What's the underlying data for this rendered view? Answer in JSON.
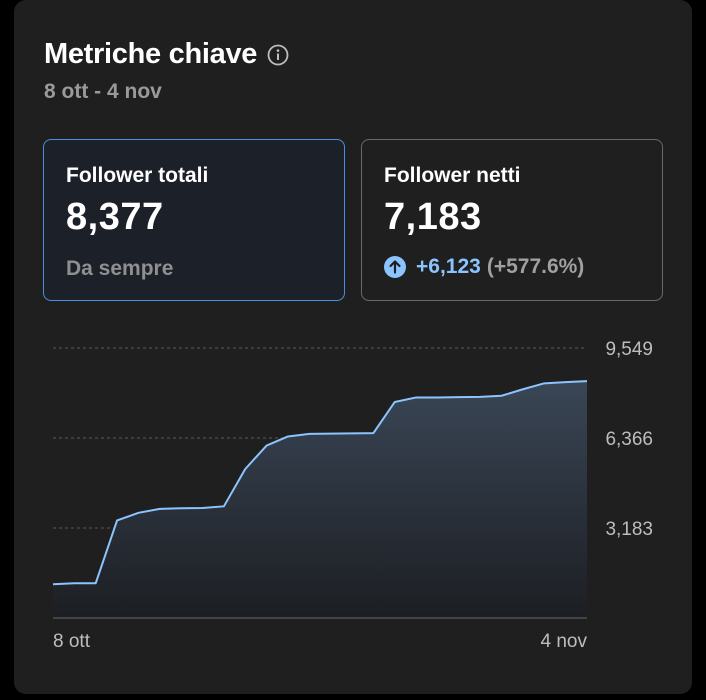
{
  "header": {
    "title": "Metriche chiave",
    "info_icon": "info-icon",
    "date_range": "8 ott - 4 nov"
  },
  "metrics": [
    {
      "label": "Follower totali",
      "value": "8,377",
      "sub": "Da sempre"
    },
    {
      "label": "Follower netti",
      "value": "7,183",
      "delta_icon": "arrow-up-circle-icon",
      "delta_value": "+6,123",
      "delta_pct": "(+577.6%)"
    }
  ],
  "colors": {
    "card_bg": "#1f1f1f",
    "accent_blue": "#4a8fdb",
    "line_color": "#8cc4ff",
    "delta_positive": "#8cc4ff"
  },
  "chart_data": {
    "type": "area",
    "x_start_label": "8 ott",
    "x_end_label": "4 nov",
    "y_ticks": [
      3183,
      6366,
      9549
    ],
    "y_tick_labels": [
      "3,183",
      "6,366",
      "9,549"
    ],
    "ylim": [
      0,
      9549
    ],
    "grid": true,
    "values": [
      1194,
      1230,
      1230,
      3450,
      3720,
      3860,
      3880,
      3890,
      3950,
      5270,
      6100,
      6420,
      6510,
      6520,
      6530,
      6540,
      7640,
      7800,
      7800,
      7810,
      7820,
      7860,
      8090,
      8300,
      8340,
      8377
    ]
  }
}
